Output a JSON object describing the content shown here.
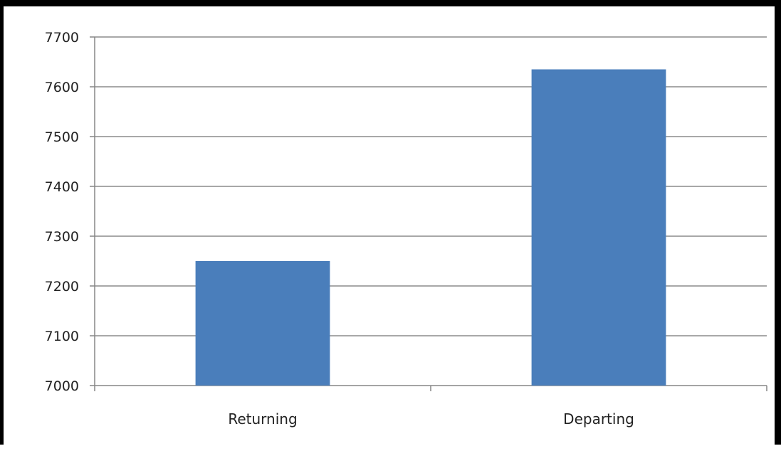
{
  "chart_data": {
    "type": "bar",
    "categories": [
      "Returning",
      "Departing"
    ],
    "values": [
      7250,
      7635
    ],
    "ylim": [
      7000,
      7700
    ],
    "yticks": [
      7000,
      7100,
      7200,
      7300,
      7400,
      7500,
      7600,
      7700
    ],
    "ytick_labels": [
      "7000",
      "7100",
      "7200",
      "7300",
      "7400",
      "7500",
      "7600",
      "7700"
    ],
    "grid": true,
    "legend": "none",
    "bar_color": "#4a7ebb",
    "gridline_color": "#8c8c8c",
    "axis_color": "#868686"
  }
}
